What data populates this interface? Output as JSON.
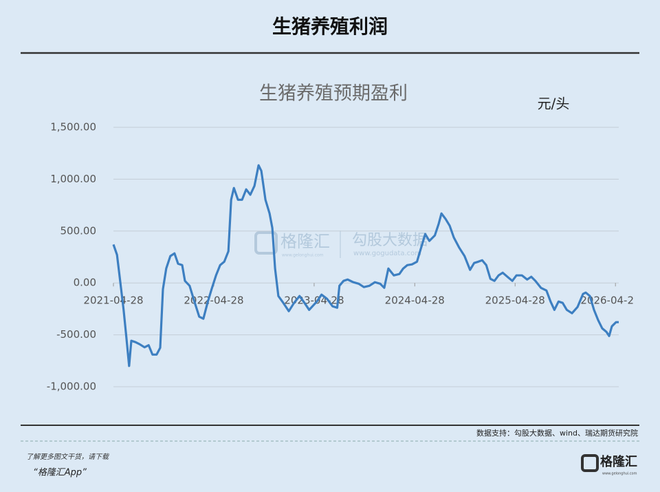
{
  "header": {
    "title": "生猪养殖利润"
  },
  "chart_data": {
    "type": "line",
    "title": "生猪养殖预期盈利",
    "unit": "元/头",
    "color": "#3d7fc1",
    "grid": true,
    "x": [
      "2021-04-28",
      "2021-05-11",
      "2021-05-23",
      "2021-06-04",
      "2021-06-14",
      "2021-06-24",
      "2021-07-02",
      "2021-07-17",
      "2021-08-01",
      "2021-08-19",
      "2021-09-03",
      "2021-09-17",
      "2021-10-02",
      "2021-10-15",
      "2021-10-25",
      "2021-11-06",
      "2021-11-21",
      "2021-12-06",
      "2021-12-19",
      "2022-01-03",
      "2022-01-13",
      "2022-01-30",
      "2022-02-14",
      "2022-03-06",
      "2022-03-21",
      "2022-04-05",
      "2022-04-20",
      "2022-05-06",
      "2022-05-21",
      "2022-06-05",
      "2022-06-20",
      "2022-06-30",
      "2022-07-10",
      "2022-07-25",
      "2022-08-09",
      "2022-08-24",
      "2022-09-08",
      "2022-09-23",
      "2022-10-08",
      "2022-10-18",
      "2022-11-02",
      "2022-11-17",
      "2022-11-27",
      "2022-12-07",
      "2022-12-19",
      "2023-01-06",
      "2023-01-26",
      "2023-02-14",
      "2023-03-06",
      "2023-03-24",
      "2023-04-10",
      "2023-05-08",
      "2023-05-25",
      "2023-06-14",
      "2023-07-04",
      "2023-07-21",
      "2023-07-29",
      "2023-08-13",
      "2023-08-28",
      "2023-09-17",
      "2023-10-07",
      "2023-10-26",
      "2023-11-15",
      "2023-12-05",
      "2023-12-24",
      "2024-01-08",
      "2024-01-23",
      "2024-02-12",
      "2024-03-03",
      "2024-03-17",
      "2024-04-01",
      "2024-04-18",
      "2024-05-06",
      "2024-05-21",
      "2024-06-05",
      "2024-06-20",
      "2024-07-10",
      "2024-07-24",
      "2024-08-03",
      "2024-08-18",
      "2024-09-02",
      "2024-09-17",
      "2024-10-07",
      "2024-10-26",
      "2024-11-15",
      "2024-11-30",
      "2024-12-15",
      "2024-12-29",
      "2025-01-13",
      "2025-01-28",
      "2025-02-12",
      "2025-02-27",
      "2025-03-14",
      "2025-04-03",
      "2025-04-18",
      "2025-05-03",
      "2025-05-23",
      "2025-06-11",
      "2025-06-26",
      "2025-07-11",
      "2025-07-31",
      "2025-08-20",
      "2025-09-04",
      "2025-09-18",
      "2025-10-03",
      "2025-10-18",
      "2025-11-02",
      "2025-11-21",
      "2025-12-11",
      "2025-12-31",
      "2026-01-10",
      "2026-01-25",
      "2026-02-09",
      "2026-02-24",
      "2026-03-11",
      "2026-03-26",
      "2026-04-05",
      "2026-04-15",
      "2026-04-30",
      "2026-05-10"
    ],
    "values": [
      371,
      271,
      7,
      -259,
      -524,
      -800,
      -557,
      -570,
      -590,
      -620,
      -600,
      -690,
      -690,
      -625,
      -60,
      140,
      259,
      285,
      186,
      172,
      20,
      -27,
      -159,
      -325,
      -345,
      -192,
      -60,
      73,
      172,
      205,
      305,
      802,
      915,
      802,
      802,
      902,
      850,
      935,
      1134,
      1080,
      802,
      670,
      530,
      139,
      -126,
      -192,
      -272,
      -192,
      -126,
      -192,
      -259,
      -179,
      -113,
      -153,
      -225,
      -239,
      -27,
      20,
      33,
      7,
      -7,
      -40,
      -27,
      7,
      -7,
      -47,
      139,
      73,
      86,
      139,
      172,
      179,
      205,
      338,
      471,
      405,
      458,
      570,
      670,
      617,
      551,
      438,
      338,
      259,
      126,
      192,
      205,
      219,
      172,
      40,
      20,
      73,
      99,
      53,
      20,
      73,
      73,
      33,
      60,
      20,
      -47,
      -73,
      -179,
      -259,
      -179,
      -192,
      -259,
      -292,
      -232,
      -106,
      -93,
      -126,
      -259,
      -358,
      -438,
      -471,
      -511,
      -418,
      -378,
      -378
    ],
    "xlim": [
      "2021-04-28",
      "2026-05-10"
    ],
    "xticks": [
      "2021-04-28",
      "2022-04-28",
      "2023-04-28",
      "2024-04-28",
      "2025-04-28",
      {
        "value": "2026-04-28",
        "label": "2026-04-2"
      }
    ],
    "ylim": [
      -1000,
      1500
    ],
    "yticks": [
      {
        "value": -1000,
        "label": "-1,000.00"
      },
      {
        "value": -500,
        "label": "-500.00"
      },
      {
        "value": 0,
        "label": "0.00"
      },
      {
        "value": 500,
        "label": "500.00"
      },
      {
        "value": 1000,
        "label": "1,000.00"
      },
      {
        "value": 1500,
        "label": "1,500.00"
      }
    ]
  },
  "watermark": {
    "brand": "格隆汇",
    "brand_url": "www.gelonghui.com",
    "partner": "勾股大数据",
    "partner_url": "www.gogudata.com"
  },
  "source": "数据支持：勾股大数据、wind、瑞达期货研究院",
  "footer": {
    "line1": "了解更多图文干货，请下载",
    "line2": "“格隆汇App”",
    "logo": "格隆汇",
    "logo_url": "www.gelonghui.com"
  }
}
